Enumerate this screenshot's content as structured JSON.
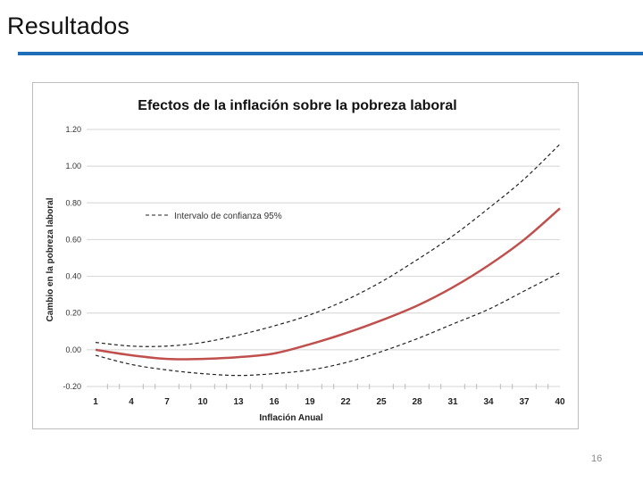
{
  "slide": {
    "title": "Resultados",
    "page_number": "16",
    "accent_color": "#1e6fb8"
  },
  "chart_data": {
    "type": "line",
    "title": "Efectos de la inflación sobre la pobreza laboral",
    "xlabel": "Inflación Anual",
    "ylabel": "Cambio en la pobreza laboral",
    "x_ticks": [
      1,
      4,
      7,
      10,
      13,
      16,
      19,
      22,
      25,
      28,
      31,
      34,
      37,
      40
    ],
    "y_ticks": [
      "-0.20",
      "0.00",
      "0.20",
      "0.40",
      "0.60",
      "0.80",
      "1.00",
      "1.20"
    ],
    "ylim": [
      -0.2,
      1.2
    ],
    "xlim": [
      1,
      40
    ],
    "grid": "horizontal",
    "legend": {
      "position": "top-left",
      "entries": [
        "Intervalo de confianza 95%"
      ]
    },
    "series": [
      {
        "style": "solid",
        "color": "#c0504d",
        "x": [
          1,
          4,
          7,
          10,
          13,
          16,
          19,
          22,
          25,
          28,
          31,
          34,
          37,
          40
        ],
        "y": [
          0.0,
          -0.03,
          -0.05,
          -0.05,
          -0.04,
          -0.02,
          0.03,
          0.09,
          0.16,
          0.24,
          0.34,
          0.46,
          0.6,
          0.77
        ]
      },
      {
        "name": "Intervalo de confianza 95%",
        "style": "dashed",
        "color": "#222222",
        "x": [
          1,
          4,
          7,
          10,
          13,
          16,
          19,
          22,
          25,
          28,
          31,
          34,
          37,
          40
        ],
        "y": [
          0.04,
          0.02,
          0.02,
          0.04,
          0.08,
          0.13,
          0.19,
          0.27,
          0.37,
          0.49,
          0.62,
          0.77,
          0.93,
          1.12
        ]
      },
      {
        "style": "dashed",
        "color": "#222222",
        "x": [
          1,
          4,
          7,
          10,
          13,
          16,
          19,
          22,
          25,
          28,
          31,
          34,
          37,
          40
        ],
        "y": [
          -0.03,
          -0.08,
          -0.11,
          -0.13,
          -0.14,
          -0.13,
          -0.11,
          -0.07,
          -0.01,
          0.06,
          0.14,
          0.22,
          0.32,
          0.42
        ]
      }
    ]
  }
}
